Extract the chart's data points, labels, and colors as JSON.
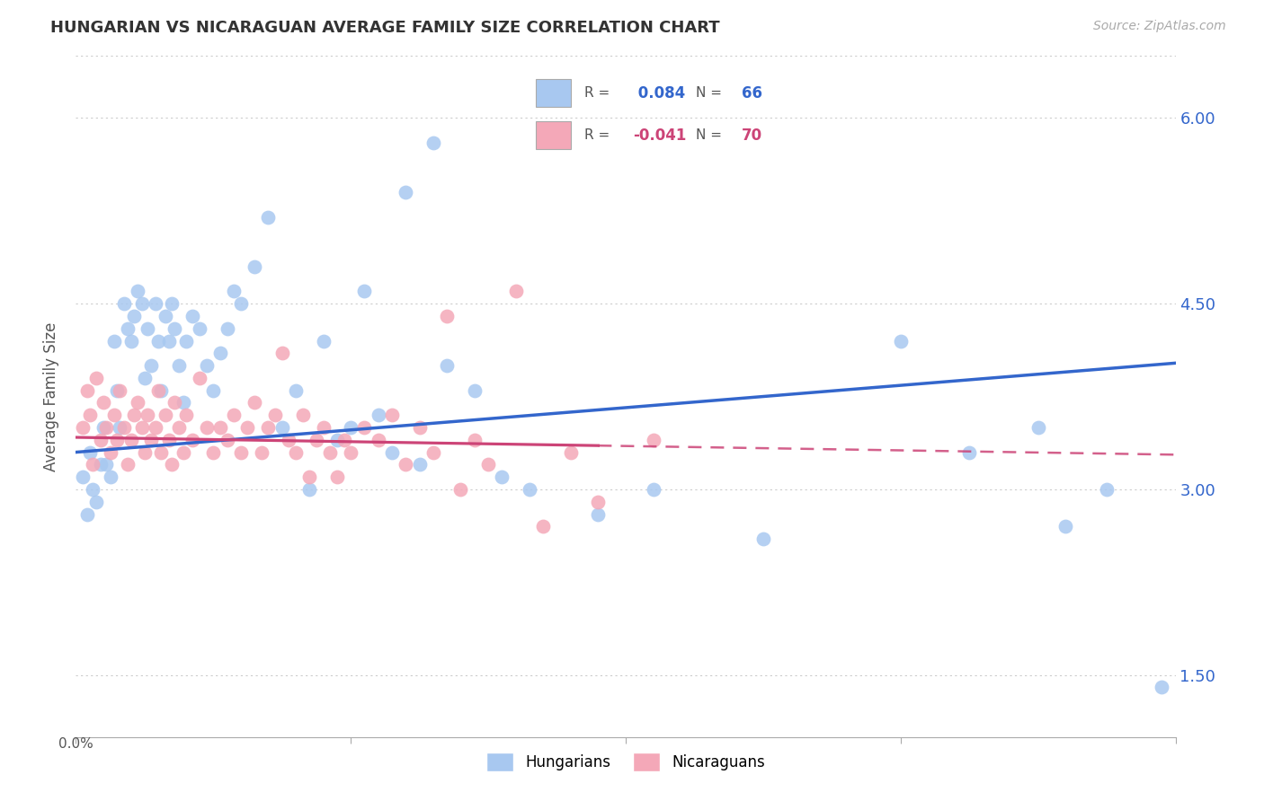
{
  "title": "HUNGARIAN VS NICARAGUAN AVERAGE FAMILY SIZE CORRELATION CHART",
  "source": "Source: ZipAtlas.com",
  "ylabel": "Average Family Size",
  "xlim": [
    0.0,
    0.8
  ],
  "ylim": [
    1.0,
    6.5
  ],
  "yticks": [
    1.5,
    3.0,
    4.5,
    6.0
  ],
  "grid_color": "#cccccc",
  "background_color": "#ffffff",
  "hungarian_color": "#a8c8f0",
  "nicaraguan_color": "#f4a8b8",
  "hungarian_line_color": "#3366cc",
  "nicaraguan_line_color": "#cc4477",
  "R_hungarian": 0.084,
  "N_hungarian": 66,
  "R_nicaraguan": -0.041,
  "N_nicaraguan": 70,
  "legend_label_hungarian": "Hungarians",
  "legend_label_nicaraguan": "Nicaraguans",
  "hungarian_x": [
    0.005,
    0.008,
    0.01,
    0.012,
    0.015,
    0.018,
    0.02,
    0.022,
    0.025,
    0.028,
    0.03,
    0.032,
    0.035,
    0.038,
    0.04,
    0.042,
    0.045,
    0.048,
    0.05,
    0.052,
    0.055,
    0.058,
    0.06,
    0.062,
    0.065,
    0.068,
    0.07,
    0.072,
    0.075,
    0.078,
    0.08,
    0.085,
    0.09,
    0.095,
    0.1,
    0.105,
    0.11,
    0.115,
    0.12,
    0.13,
    0.14,
    0.15,
    0.16,
    0.17,
    0.18,
    0.19,
    0.2,
    0.21,
    0.22,
    0.23,
    0.24,
    0.25,
    0.26,
    0.27,
    0.29,
    0.31,
    0.33,
    0.38,
    0.42,
    0.5,
    0.6,
    0.65,
    0.7,
    0.72,
    0.75,
    0.79
  ],
  "hungarian_y": [
    3.1,
    2.8,
    3.3,
    3.0,
    2.9,
    3.2,
    3.5,
    3.2,
    3.1,
    4.2,
    3.8,
    3.5,
    4.5,
    4.3,
    4.2,
    4.4,
    4.6,
    4.5,
    3.9,
    4.3,
    4.0,
    4.5,
    4.2,
    3.8,
    4.4,
    4.2,
    4.5,
    4.3,
    4.0,
    3.7,
    4.2,
    4.4,
    4.3,
    4.0,
    3.8,
    4.1,
    4.3,
    4.6,
    4.5,
    4.8,
    5.2,
    3.5,
    3.8,
    3.0,
    4.2,
    3.4,
    3.5,
    4.6,
    3.6,
    3.3,
    5.4,
    3.2,
    5.8,
    4.0,
    3.8,
    3.1,
    3.0,
    2.8,
    3.0,
    2.6,
    4.2,
    3.3,
    3.5,
    2.7,
    3.0,
    1.4
  ],
  "nicaraguan_x": [
    0.005,
    0.008,
    0.01,
    0.012,
    0.015,
    0.018,
    0.02,
    0.022,
    0.025,
    0.028,
    0.03,
    0.032,
    0.035,
    0.038,
    0.04,
    0.042,
    0.045,
    0.048,
    0.05,
    0.052,
    0.055,
    0.058,
    0.06,
    0.062,
    0.065,
    0.068,
    0.07,
    0.072,
    0.075,
    0.078,
    0.08,
    0.085,
    0.09,
    0.095,
    0.1,
    0.105,
    0.11,
    0.115,
    0.12,
    0.125,
    0.13,
    0.135,
    0.14,
    0.145,
    0.15,
    0.155,
    0.16,
    0.165,
    0.17,
    0.175,
    0.18,
    0.185,
    0.19,
    0.195,
    0.2,
    0.21,
    0.22,
    0.23,
    0.24,
    0.25,
    0.26,
    0.27,
    0.28,
    0.29,
    0.3,
    0.32,
    0.34,
    0.36,
    0.38,
    0.42
  ],
  "nicaraguan_y": [
    3.5,
    3.8,
    3.6,
    3.2,
    3.9,
    3.4,
    3.7,
    3.5,
    3.3,
    3.6,
    3.4,
    3.8,
    3.5,
    3.2,
    3.4,
    3.6,
    3.7,
    3.5,
    3.3,
    3.6,
    3.4,
    3.5,
    3.8,
    3.3,
    3.6,
    3.4,
    3.2,
    3.7,
    3.5,
    3.3,
    3.6,
    3.4,
    3.9,
    3.5,
    3.3,
    3.5,
    3.4,
    3.6,
    3.3,
    3.5,
    3.7,
    3.3,
    3.5,
    3.6,
    4.1,
    3.4,
    3.3,
    3.6,
    3.1,
    3.4,
    3.5,
    3.3,
    3.1,
    3.4,
    3.3,
    3.5,
    3.4,
    3.6,
    3.2,
    3.5,
    3.3,
    4.4,
    3.0,
    3.4,
    3.2,
    4.6,
    2.7,
    3.3,
    2.9,
    3.4
  ]
}
